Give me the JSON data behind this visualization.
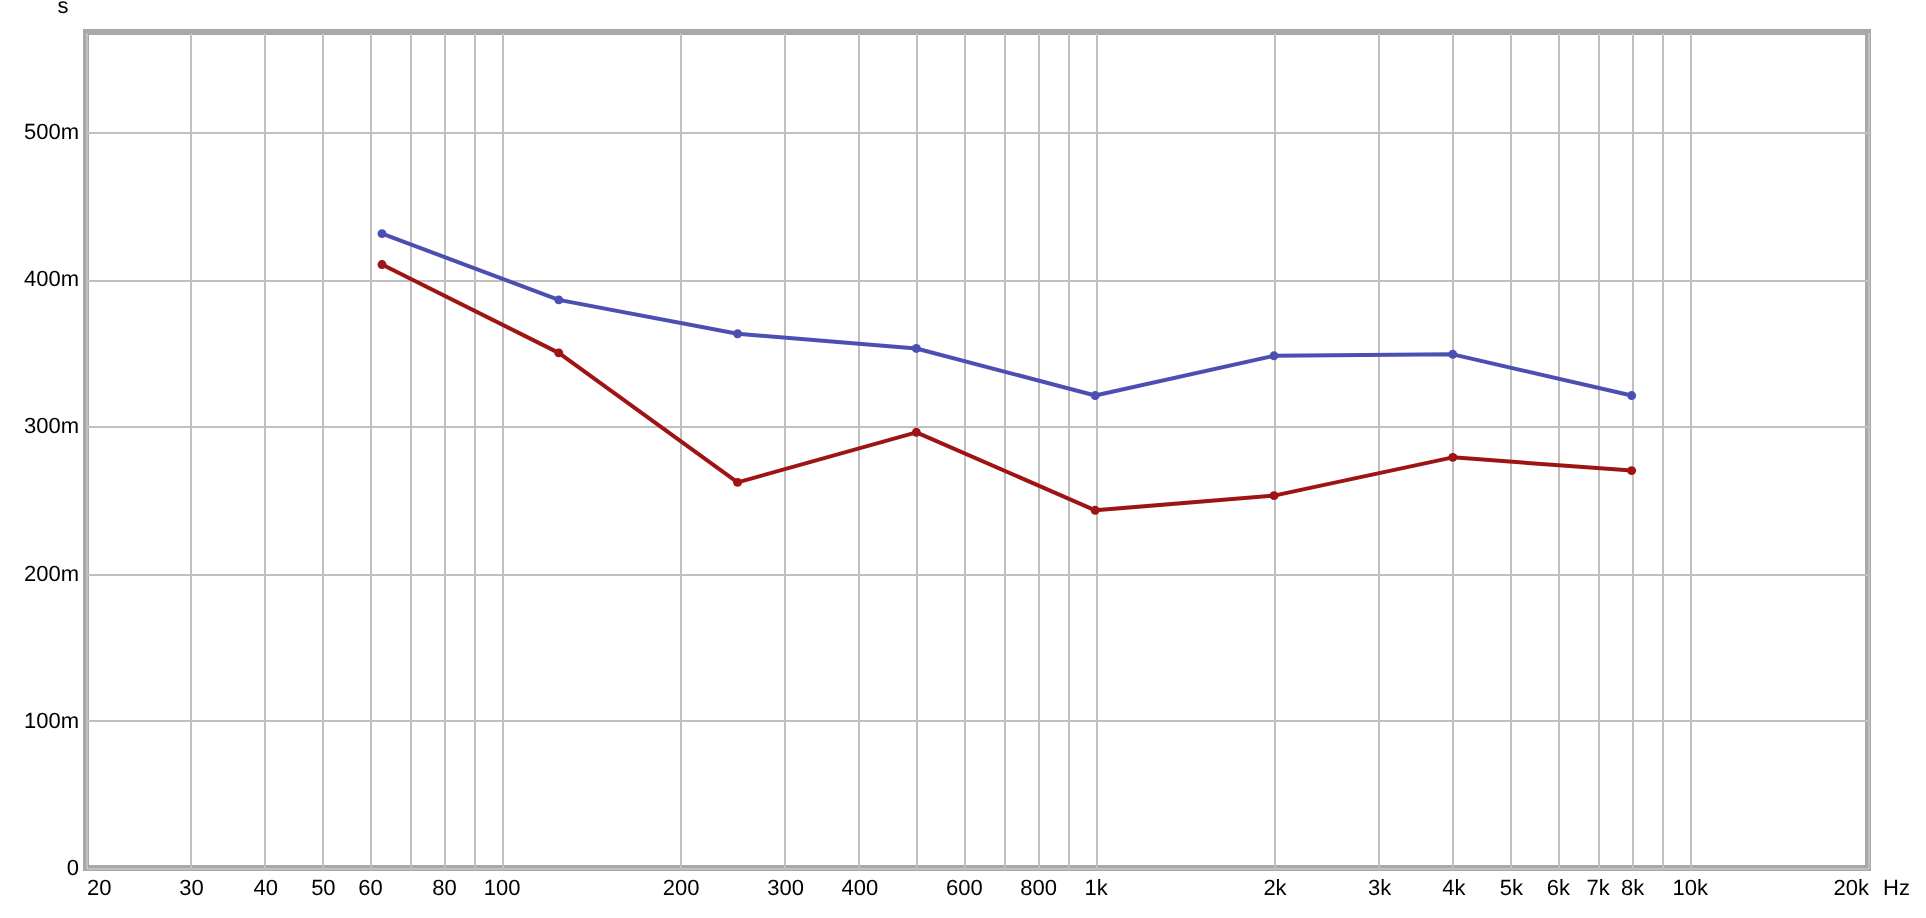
{
  "chart_data": {
    "type": "line",
    "ylabel": "s",
    "log": "x",
    "x": [
      63,
      125,
      250,
      500,
      1000,
      2000,
      4000,
      8000
    ],
    "series": [
      {
        "color": "#4b4fb2",
        "values": [
          431,
          386,
          363,
          353,
          321,
          348,
          349,
          321
        ]
      },
      {
        "color": "#9e1414",
        "values": [
          410,
          350,
          262,
          296,
          243,
          253,
          279,
          270
        ]
      }
    ],
    "xlim": [
      20,
      20000
    ],
    "xticks": [
      20,
      30,
      40,
      50,
      60,
      {
        "value": 70,
        "label": null
      },
      80,
      {
        "value": 90,
        "label": null
      },
      100,
      200,
      300,
      400,
      {
        "value": 500,
        "label": null
      },
      600,
      {
        "value": 700,
        "label": null
      },
      800,
      {
        "value": 900,
        "label": null
      },
      {
        "value": 1000,
        "label": "1k"
      },
      {
        "value": 2000,
        "label": "2k"
      },
      {
        "value": 3000,
        "label": "3k"
      },
      {
        "value": 4000,
        "label": "4k"
      },
      {
        "value": 5000,
        "label": "5k"
      },
      {
        "value": 6000,
        "label": "6k"
      },
      {
        "value": 7000,
        "label": "7k"
      },
      {
        "value": 8000,
        "label": "8k"
      },
      {
        "value": 9000,
        "label": null
      },
      {
        "value": 10000,
        "label": "10k"
      },
      {
        "value": 20000,
        "label": "20k"
      }
    ],
    "xlabel": "Hz",
    "ylim": [
      0,
      568
    ],
    "yticks": [
      0,
      {
        "value": 100,
        "label": "100m"
      },
      {
        "value": 200,
        "label": "200m"
      },
      {
        "value": 300,
        "label": "300m"
      },
      {
        "value": 400,
        "label": "400m"
      },
      {
        "value": 500,
        "label": "500m"
      }
    ],
    "grid": true,
    "marker": "circle",
    "line_style": "solid"
  }
}
